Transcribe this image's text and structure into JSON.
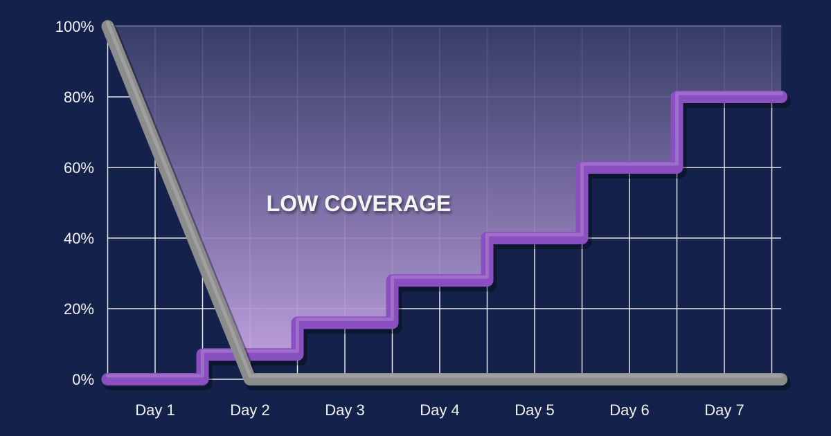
{
  "chart_data": {
    "type": "line",
    "title": "",
    "xlabel": "",
    "ylabel": "",
    "categories": [
      "Day 1",
      "Day 2",
      "Day 3",
      "Day 4",
      "Day 5",
      "Day 6",
      "Day 7"
    ],
    "yticks": [
      "0%",
      "20%",
      "40%",
      "60%",
      "80%",
      "100%"
    ],
    "ylim": [
      0,
      100
    ],
    "grid": true,
    "series": [
      {
        "style": "step",
        "color": "#8a4fc0",
        "points": [
          [
            0.5,
            0
          ],
          [
            1.5,
            0
          ],
          [
            1.5,
            7
          ],
          [
            2.5,
            7
          ],
          [
            2.5,
            16
          ],
          [
            3.5,
            16
          ],
          [
            3.5,
            28
          ],
          [
            4.5,
            28
          ],
          [
            4.5,
            40
          ],
          [
            5.5,
            40
          ],
          [
            5.5,
            60
          ],
          [
            6.5,
            60
          ],
          [
            6.5,
            80
          ],
          [
            7.6,
            80
          ]
        ]
      },
      {
        "style": "line",
        "color": "#8c8c8c",
        "points": [
          [
            0.5,
            100
          ],
          [
            2.0,
            0
          ],
          [
            7.6,
            0
          ]
        ]
      }
    ],
    "annotations": [
      {
        "text": "LOW COVERAGE",
        "region": "between series"
      }
    ],
    "colors": {
      "background": "#14224b",
      "grid": "#e8e8f0",
      "fill": "#b89ad6"
    }
  }
}
